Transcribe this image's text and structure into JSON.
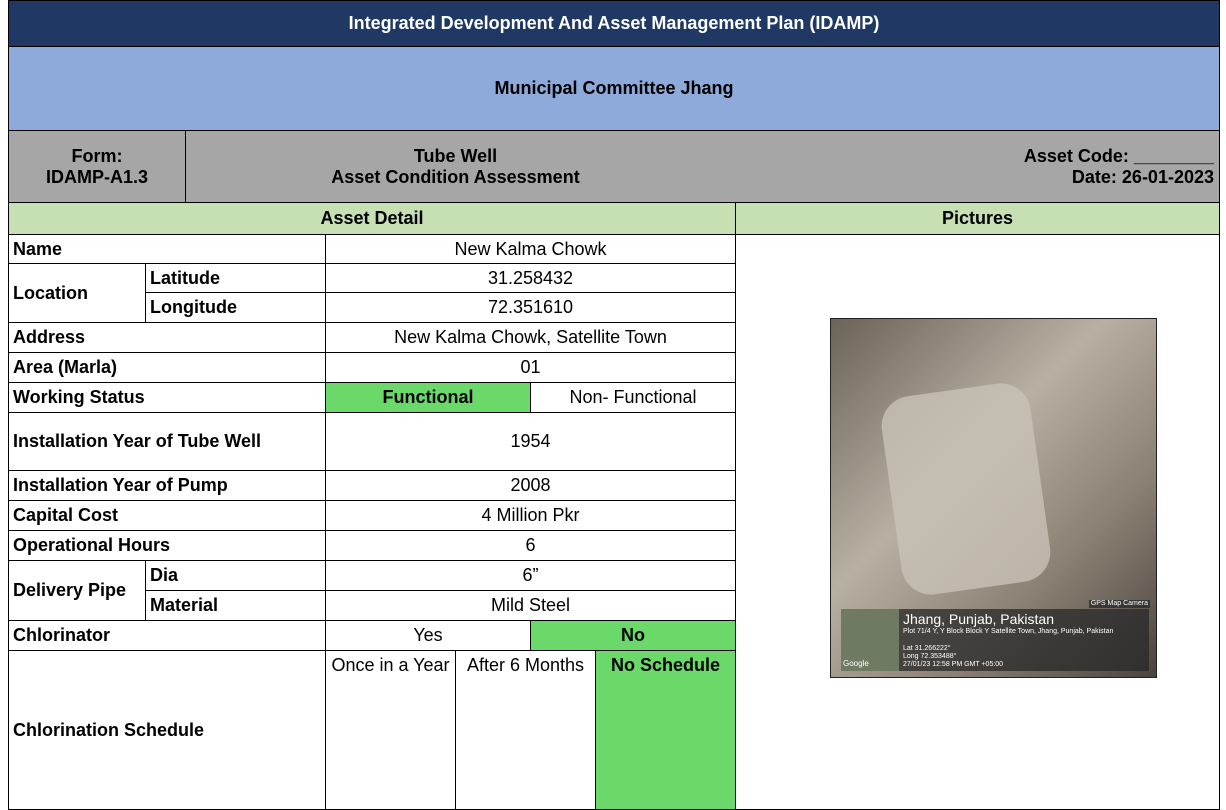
{
  "header": {
    "title": "Integrated Development And Asset Management Plan (IDAMP)",
    "subtitle": "Municipal Committee Jhang",
    "form_label": "Form:",
    "form_code": "IDAMP-A1.3",
    "form_type": "Tube Well",
    "form_desc": "Asset Condition Assessment",
    "asset_code": "Asset Code: ________",
    "date": "Date: 26-01-2023"
  },
  "sections": {
    "asset_detail": "Asset Detail",
    "pictures": "Pictures"
  },
  "rows": {
    "name": {
      "label": "Name",
      "value": "New Kalma Chowk"
    },
    "location": {
      "label": "Location",
      "latitude_label": "Latitude",
      "latitude": "31.258432",
      "longitude_label": "Longitude",
      "longitude": "72.351610"
    },
    "address": {
      "label": "Address",
      "value": "New Kalma Chowk, Satellite Town"
    },
    "area": {
      "label": "Area (Marla)",
      "value": "01"
    },
    "working_status": {
      "label": "Working Status",
      "options": [
        "Functional",
        "Non- Functional"
      ]
    },
    "install_tube_well": {
      "label": "Installation Year of Tube Well",
      "value": "1954"
    },
    "install_pump": {
      "label": "Installation Year of Pump",
      "value": "2008"
    },
    "capital_cost": {
      "label": "Capital Cost",
      "value": "4 Million Pkr"
    },
    "operational_hours": {
      "label": "Operational Hours",
      "value": "6"
    },
    "delivery_pipe": {
      "label": "Delivery Pipe",
      "dia_label": "Dia",
      "dia": "6”",
      "material_label": "Material",
      "material": "Mild Steel"
    },
    "chlorinator": {
      "label": "Chlorinator",
      "options": [
        "Yes",
        "No"
      ]
    },
    "chlorination_schedule": {
      "label": "Chlorination Schedule",
      "options": [
        "Once in a Year",
        "After 6 Months",
        "No Schedule"
      ]
    }
  },
  "photo": {
    "brand": "GPS Map Camera",
    "place": "Jhang, Punjab, Pakistan",
    "address": "Plot 71/4 Y, Y Block Block Y Satellite Town, Jhang, Punjab, Pakistan",
    "lat": "Lat 31.266222°",
    "long": "Long 72.353488°",
    "timestamp": "27/01/23 12:58 PM GMT +05:00",
    "map": "Google"
  }
}
